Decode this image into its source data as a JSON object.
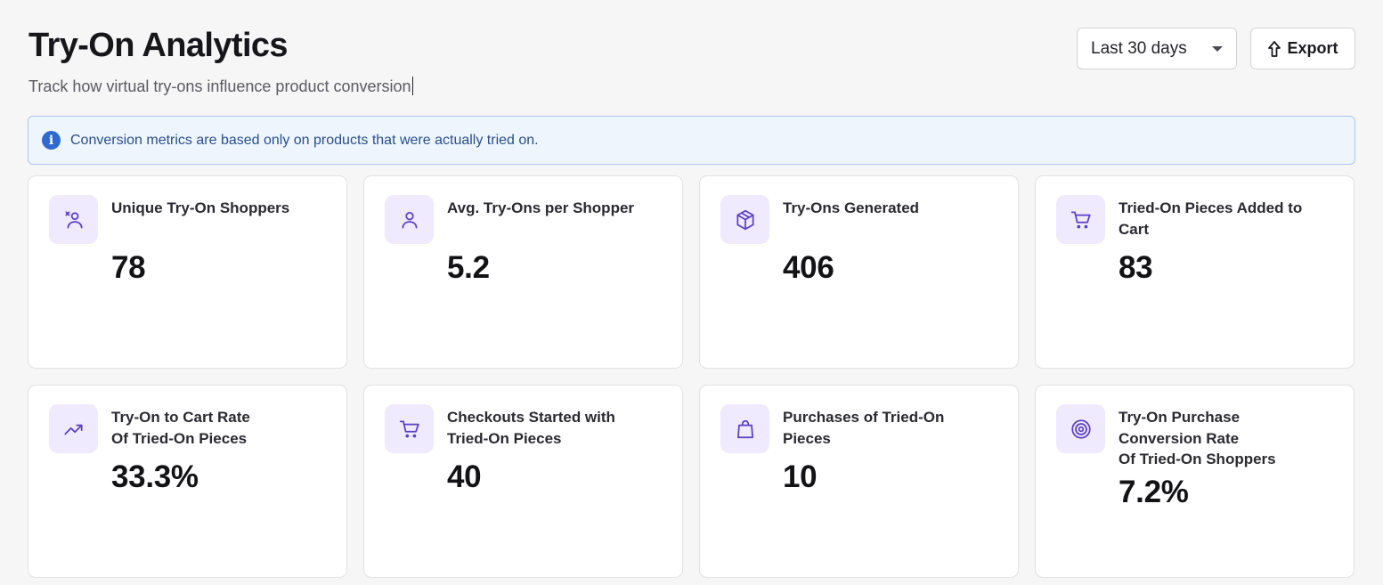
{
  "header": {
    "title": "Try-On Analytics",
    "subtitle": "Track how virtual try-ons influence product conversion"
  },
  "controls": {
    "date_range": "Last 30 days",
    "export_label": "Export"
  },
  "banner": {
    "icon": "info-icon",
    "text": "Conversion metrics are based only on products that were actually tried on."
  },
  "metrics": [
    {
      "label": "Unique Try-On Shoppers",
      "value": "78",
      "icon": "user-sparkle-icon"
    },
    {
      "label": "Avg. Try-Ons per Shopper",
      "value": "5.2",
      "icon": "user-icon"
    },
    {
      "label": "Try-Ons Generated",
      "value": "406",
      "icon": "box-icon"
    },
    {
      "label": "Tried-On Pieces Added to\nCart",
      "value": "83",
      "icon": "cart-icon"
    },
    {
      "label": "Try-On to Cart Rate\nOf Tried-On Pieces",
      "value": "33.3%",
      "icon": "trend-up-icon"
    },
    {
      "label": "Checkouts Started with\nTried-On Pieces",
      "value": "40",
      "icon": "cart-icon"
    },
    {
      "label": "Purchases of Tried-On\nPieces",
      "value": "10",
      "icon": "shopping-bag-icon"
    },
    {
      "label": "Try-On Purchase\nConversion Rate\nOf Tried-On Shoppers",
      "value": "7.2%",
      "icon": "target-icon"
    }
  ],
  "colors": {
    "accent": "#5b3fc4",
    "icon_bg": "#efeafd",
    "banner_bg": "#eef5fd",
    "banner_border": "#a9c8ef",
    "info_blue": "#2f6ad0"
  }
}
